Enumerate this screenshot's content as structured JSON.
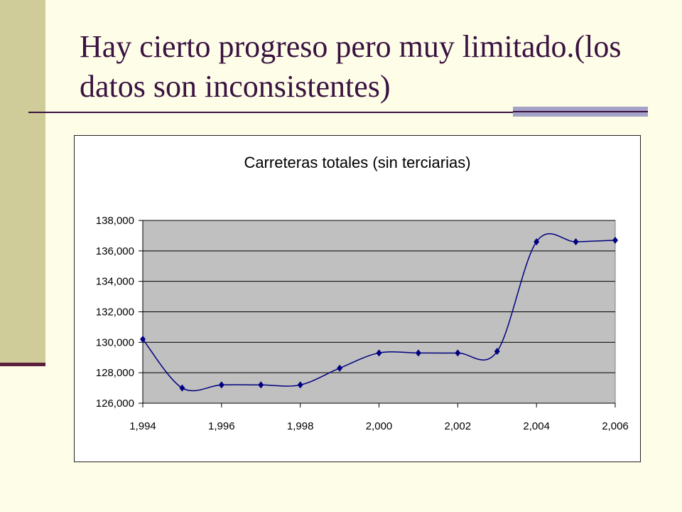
{
  "slide": {
    "title": "Hay cierto progreso pero muy limitado.(los datos son inconsistentes)"
  },
  "colors": {
    "background": "#fefde8",
    "side_band": "#cfcc99",
    "accent_line": "#5c1f3c",
    "title_text": "#3a1240",
    "plot_area": "#c0c0c0",
    "series_line": "#000080"
  },
  "chart_data": {
    "type": "line",
    "title": "Carreteras totales (sin terciarias)",
    "xlabel": "",
    "ylabel": "",
    "xlim": [
      1994,
      2006
    ],
    "ylim": [
      126000,
      138000
    ],
    "x_tick_labels": [
      "1,994",
      "1,996",
      "1,998",
      "2,000",
      "2,002",
      "2,004",
      "2,006"
    ],
    "y_tick_labels": [
      "126,000",
      "128,000",
      "130,000",
      "132,000",
      "134,000",
      "136,000",
      "138,000"
    ],
    "grid": "horizontal",
    "legend": "none",
    "marker": "diamond",
    "smoothed": true,
    "series": [
      {
        "x": [
          1994,
          1995,
          1996,
          1997,
          1998,
          1999,
          2000,
          2001,
          2002,
          2003,
          2004,
          2005,
          2006
        ],
        "values": [
          130200,
          127000,
          127200,
          127200,
          127200,
          128300,
          129300,
          129300,
          129300,
          129400,
          136600,
          136600,
          136700
        ]
      }
    ]
  }
}
